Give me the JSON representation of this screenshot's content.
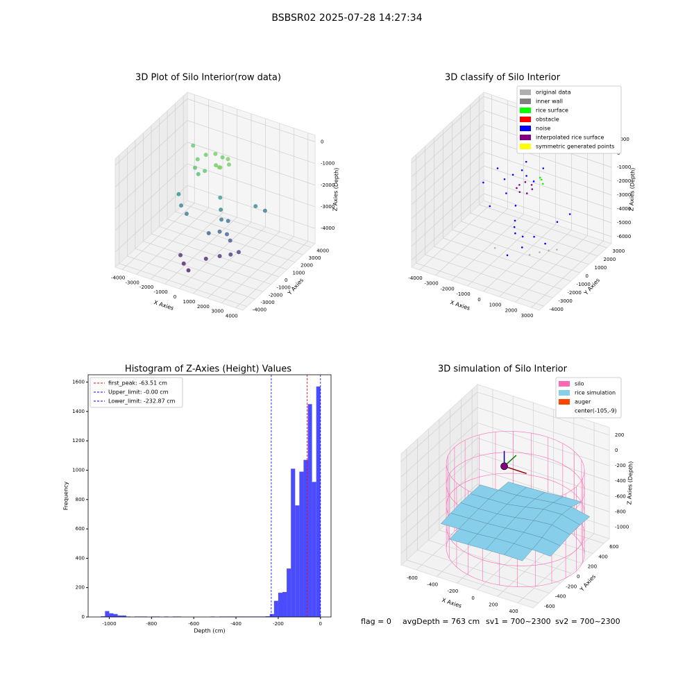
{
  "title": "BSBSR02 2025-07-28 14:27:34",
  "chart_data": [
    {
      "type": "scatter3d",
      "title": "3D Plot of Silo Interior(row data)",
      "xlabel": "X Axies",
      "ylabel": "Y Axies",
      "zlabel": "Z Axies (Depth)",
      "xlim": [
        -4500,
        4500
      ],
      "ylim": [
        -4500,
        4500
      ],
      "zlim": [
        -4700,
        300
      ],
      "xticks": [
        -4000,
        -3000,
        -2000,
        -1000,
        0,
        1000,
        2000,
        3000,
        4000
      ],
      "yticks": [
        -4000,
        -3000,
        -2000,
        -1000,
        0,
        1000,
        2000,
        3000,
        4000
      ],
      "zticks": [
        -4000,
        -3000,
        -2000,
        -1000,
        0
      ],
      "colormap": "viridis",
      "series": [
        {
          "x": [
            -1800,
            -1500,
            -1000,
            -500,
            0,
            300,
            -1700,
            -1300,
            -900,
            -400,
            0,
            200,
            -2400,
            -2000,
            -1500,
            300,
            400,
            500,
            800,
            600,
            1000,
            1400,
            0,
            -1200,
            -800,
            200,
            1000,
            1600,
            2000,
            -300,
            -2800,
            2000,
            2500
          ],
          "y": [
            1000,
            1500,
            1800,
            1800,
            1600,
            1200,
            500,
            200,
            300,
            800,
            500,
            300,
            -300,
            -700,
            -900,
            100,
            0,
            -100,
            200,
            -500,
            -300,
            -600,
            -800,
            -2200,
            -2500,
            -1500,
            -1200,
            -900,
            -600,
            -2800,
            2200,
            1500,
            1800
          ],
          "z": [
            -1000,
            -900,
            -850,
            -900,
            -800,
            -850,
            -1200,
            -1300,
            -1100,
            -900,
            -800,
            -700,
            -2300,
            -2600,
            -2800,
            -2000,
            -2500,
            -2900,
            -3000,
            -3300,
            -3400,
            -3500,
            -3400,
            -4200,
            -4400,
            -4300,
            -4100,
            -4000,
            -3900,
            -4500,
            -1000,
            -2500,
            -2700
          ]
        }
      ]
    },
    {
      "type": "scatter3d",
      "title": "3D classify of Silo Interior",
      "xlabel": "X Axies",
      "ylabel": "Y Axies",
      "zlabel": "Z Axies (Depth)",
      "xlim": [
        -4500,
        3500
      ],
      "ylim": [
        -4500,
        3500
      ],
      "zlim": [
        -6500,
        1300
      ],
      "xticks": [
        -4000,
        -3000,
        -2000,
        -1000,
        0,
        1000,
        2000,
        3000
      ],
      "yticks": [
        -4000,
        -3000,
        -2000,
        -1000,
        0,
        1000,
        2000,
        3000
      ],
      "zticks": [
        -6000,
        -5000,
        -4000,
        -3000,
        -2000,
        -1000,
        0,
        1000
      ],
      "legend": "upper right",
      "series": [
        {
          "name": "original data",
          "color": "#b0b0b0",
          "x": [
            1200,
            1600,
            2000,
            -800,
            2400
          ],
          "y": [
            -1500,
            -1100,
            -800,
            -1800,
            -600
          ],
          "z": [
            -5200,
            -5100,
            -5000,
            -5300,
            -4900
          ]
        },
        {
          "name": "inner wall",
          "color": "#808080",
          "x": [],
          "y": [],
          "z": []
        },
        {
          "name": "rice surface",
          "color": "#00ff00",
          "x": [
            700,
            900,
            500
          ],
          "y": [
            700,
            500,
            900
          ],
          "z": [
            -1300,
            -1400,
            -1350
          ]
        },
        {
          "name": "obstacle",
          "color": "#ff0000",
          "x": [],
          "y": [],
          "z": []
        },
        {
          "name": "noise",
          "color": "#0000ff",
          "x": [
            -1500,
            -1200,
            -1000,
            -800,
            -300,
            0,
            300,
            600,
            900,
            1200,
            -2500,
            -3000,
            1800,
            2200,
            -600,
            200,
            500,
            700,
            -200,
            100,
            -1800,
            1500
          ],
          "y": [
            500,
            900,
            -200,
            1200,
            -400,
            -1000,
            -1500,
            -1200,
            -1800,
            -1000,
            1500,
            800,
            500,
            1200,
            0,
            -2200,
            200,
            900,
            600,
            100,
            -600,
            -300
          ],
          "z": [
            -2000,
            -1800,
            -2400,
            -1500,
            -2900,
            -3500,
            -4000,
            -4300,
            -4600,
            -4200,
            -2200,
            -3000,
            -3800,
            -3500,
            -4800,
            -5200,
            -1200,
            -600,
            -300,
            -900,
            -3400,
            -5000
          ]
        },
        {
          "name": "interpolated rice surface",
          "color": "#800080",
          "x": [
            -400,
            -200,
            200,
            400,
            300,
            -100,
            -400
          ],
          "y": [
            200,
            500,
            500,
            200,
            -200,
            -300,
            -100
          ],
          "z": [
            -1800,
            -1700,
            -1750,
            -1800,
            -1900,
            -1900,
            -1850
          ]
        },
        {
          "name": "symmetric generated points",
          "color": "#ffff00",
          "x": [],
          "y": [],
          "z": []
        }
      ]
    },
    {
      "type": "histogram",
      "title": "Histogram of Z-Axies (Height) Values",
      "xlabel": "Depth (cm)",
      "ylabel": "Frequency",
      "xlim": [
        -1100,
        50
      ],
      "ylim": [
        0,
        1650
      ],
      "xticks": [
        -1000,
        -800,
        -600,
        -400,
        -200,
        0
      ],
      "yticks": [
        0,
        200,
        400,
        600,
        800,
        1000,
        1200,
        1400,
        1600
      ],
      "color": "#0000ff",
      "legend": "upper left",
      "bins": [
        -1040,
        -1020,
        -1000,
        -980,
        -960,
        -940,
        -920,
        -900,
        -880,
        -860,
        -840,
        -820,
        -800,
        -780,
        -760,
        -740,
        -720,
        -700,
        -680,
        -660,
        -640,
        -620,
        -600,
        -580,
        -560,
        -540,
        -520,
        -500,
        -480,
        -460,
        -440,
        -420,
        -400,
        -380,
        -360,
        -340,
        -320,
        -300,
        -280,
        -260,
        -240,
        -220,
        -200,
        -180,
        -160,
        -140,
        -120,
        -100,
        -80,
        -60,
        -40,
        -20,
        0
      ],
      "counts": [
        5,
        40,
        25,
        20,
        10,
        10,
        3,
        0,
        3,
        3,
        3,
        0,
        3,
        3,
        0,
        3,
        0,
        3,
        3,
        0,
        0,
        0,
        0,
        0,
        0,
        0,
        3,
        0,
        3,
        3,
        3,
        3,
        3,
        3,
        3,
        3,
        3,
        3,
        3,
        5,
        20,
        110,
        165,
        170,
        330,
        1010,
        760,
        990,
        1070,
        1450,
        920,
        1570
      ],
      "vlines": [
        {
          "name": "first_peak: -63.51 cm",
          "value": -63.51,
          "color": "#ff0000"
        },
        {
          "name": "Upper_limit: -0.00 cm",
          "value": 0,
          "color": "#0000ff"
        },
        {
          "name": "Lower_limit: -232.87 cm",
          "value": -232.87,
          "color": "#0000ff"
        }
      ]
    },
    {
      "type": "surface3d",
      "title": "3D simulation of Silo Interior",
      "xlabel": "X Axies",
      "ylabel": "Y Axies",
      "zlabel": "Z Axies (Depth)",
      "xlim": [
        -750,
        550
      ],
      "ylim": [
        -700,
        700
      ],
      "zlim": [
        -1150,
        300
      ],
      "xticks": [
        -600,
        -400,
        -200,
        0,
        200,
        400
      ],
      "yticks": [
        -600,
        -400,
        -200,
        0,
        200,
        400,
        600
      ],
      "zticks": [
        -1000,
        -800,
        -600,
        -400,
        -200,
        0,
        200
      ],
      "legend": "upper right",
      "series": [
        {
          "name": "silo",
          "color": "#ff69b4",
          "radius": 600,
          "zrange": [
            -1100,
            0
          ]
        },
        {
          "name": "rice simulation",
          "color": "#87ceeb",
          "radius": 590,
          "x": [
            -540,
            -360,
            -180,
            0,
            180,
            360,
            540
          ],
          "y": [
            -540,
            -360,
            -180,
            0,
            180,
            360,
            540
          ],
          "z": [
            [
              -760,
              -750,
              -740,
              -730,
              -720,
              -720,
              -730
            ],
            [
              -740,
              -730,
              -720,
              -700,
              -690,
              -690,
              -700
            ],
            [
              -720,
              -710,
              -700,
              -680,
              -660,
              -650,
              -680
            ],
            [
              -700,
              -700,
              -690,
              -660,
              -620,
              -600,
              -650
            ],
            [
              -700,
              -690,
              -680,
              -640,
              -590,
              -580,
              -640
            ],
            [
              -700,
              -690,
              -680,
              -650,
              -620,
              -600,
              -650
            ],
            [
              -710,
              -700,
              -690,
              -680,
              -660,
              -650,
              -670
            ]
          ]
        },
        {
          "name": "auger",
          "color": "#ff4500"
        },
        {
          "name": "center(-105,-9)",
          "color": "#ffffff",
          "marker_color": "#800080",
          "x": -105,
          "y": -9,
          "z": -30
        }
      ],
      "annotations": [
        "flag = 0",
        "avgDepth = 763 cm",
        "sv1 = 700~2300",
        "sv2 = 700~2300"
      ]
    }
  ]
}
